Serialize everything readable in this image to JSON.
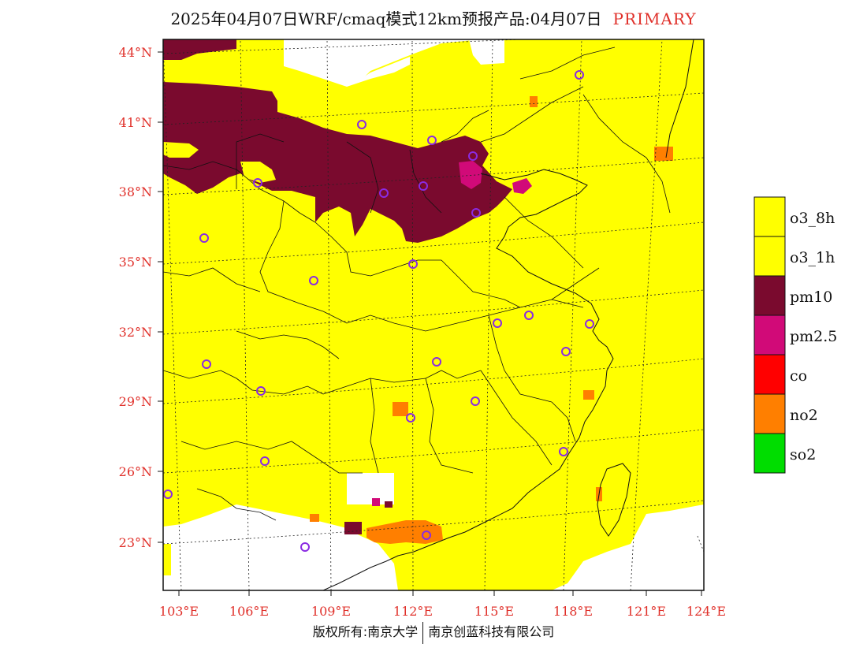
{
  "title": {
    "main": "2025年04月07日WRF/cmaq模式12km预报产品:04月07日",
    "tag": "PRIMARY"
  },
  "footer": {
    "left": "版权所有:南京大学",
    "right": "南京创蓝科技有限公司"
  },
  "axes": {
    "lat_labels": [
      "44°N",
      "41°N",
      "38°N",
      "35°N",
      "32°N",
      "29°N",
      "26°N",
      "23°N"
    ],
    "lon_labels": [
      "103°E",
      "106°E",
      "109°E",
      "112°E",
      "115°E",
      "118°E",
      "121°E",
      "124°E"
    ],
    "label_color": "#e0302a"
  },
  "legend": [
    {
      "label": "o3_8h",
      "color": "#ffff00"
    },
    {
      "label": "o3_1h",
      "color": "#ffff00"
    },
    {
      "label": "pm10",
      "color": "#7a0a2e"
    },
    {
      "label": "pm2.5",
      "color": "#d10a78"
    },
    {
      "label": "co",
      "color": "#ff0000"
    },
    {
      "label": "no2",
      "color": "#ff7f00"
    },
    {
      "label": "so2",
      "color": "#00dd00"
    }
  ],
  "colors": {
    "o3": "#ffff00",
    "pm10": "#7a0a2e",
    "pm25": "#d10a78",
    "no2": "#ff7f00",
    "station": "#8a2be2"
  }
}
